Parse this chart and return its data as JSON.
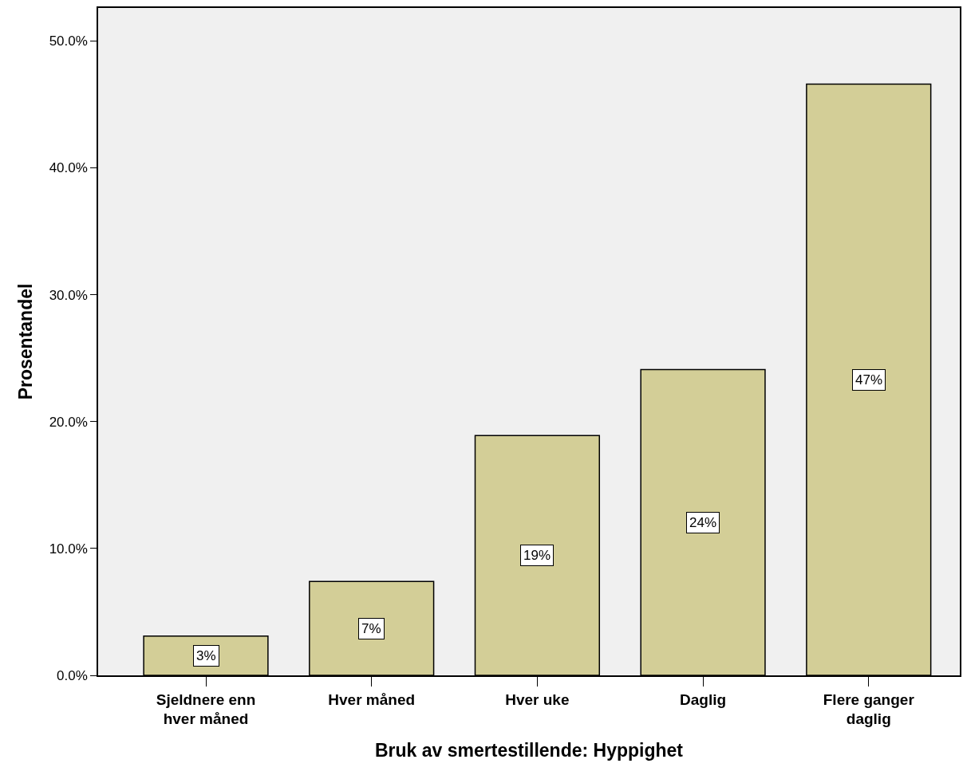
{
  "chart_data": {
    "type": "bar",
    "xlabel": "Bruk av smertestillende: Hyppighet",
    "ylabel": "Prosentandel",
    "categories": [
      "Sjeldnere enn\nhver måned",
      "Hver måned",
      "Hver uke",
      "Daglig",
      "Flere ganger\ndaglig"
    ],
    "values": [
      3.1,
      7.4,
      18.9,
      24.1,
      46.6
    ],
    "value_labels": [
      "3%",
      "7%",
      "19%",
      "24%",
      "47%"
    ],
    "color": "#d3ce97",
    "ylim": [
      0,
      52.6
    ],
    "yticks": [
      {
        "value": 0,
        "label": "0.0%"
      },
      {
        "value": 10,
        "label": "10.0%"
      },
      {
        "value": 20,
        "label": "20.0%"
      },
      {
        "value": 30,
        "label": "30.0%"
      },
      {
        "value": 40,
        "label": "40.0%"
      },
      {
        "value": 50,
        "label": "50.0%"
      }
    ],
    "grid": false
  }
}
